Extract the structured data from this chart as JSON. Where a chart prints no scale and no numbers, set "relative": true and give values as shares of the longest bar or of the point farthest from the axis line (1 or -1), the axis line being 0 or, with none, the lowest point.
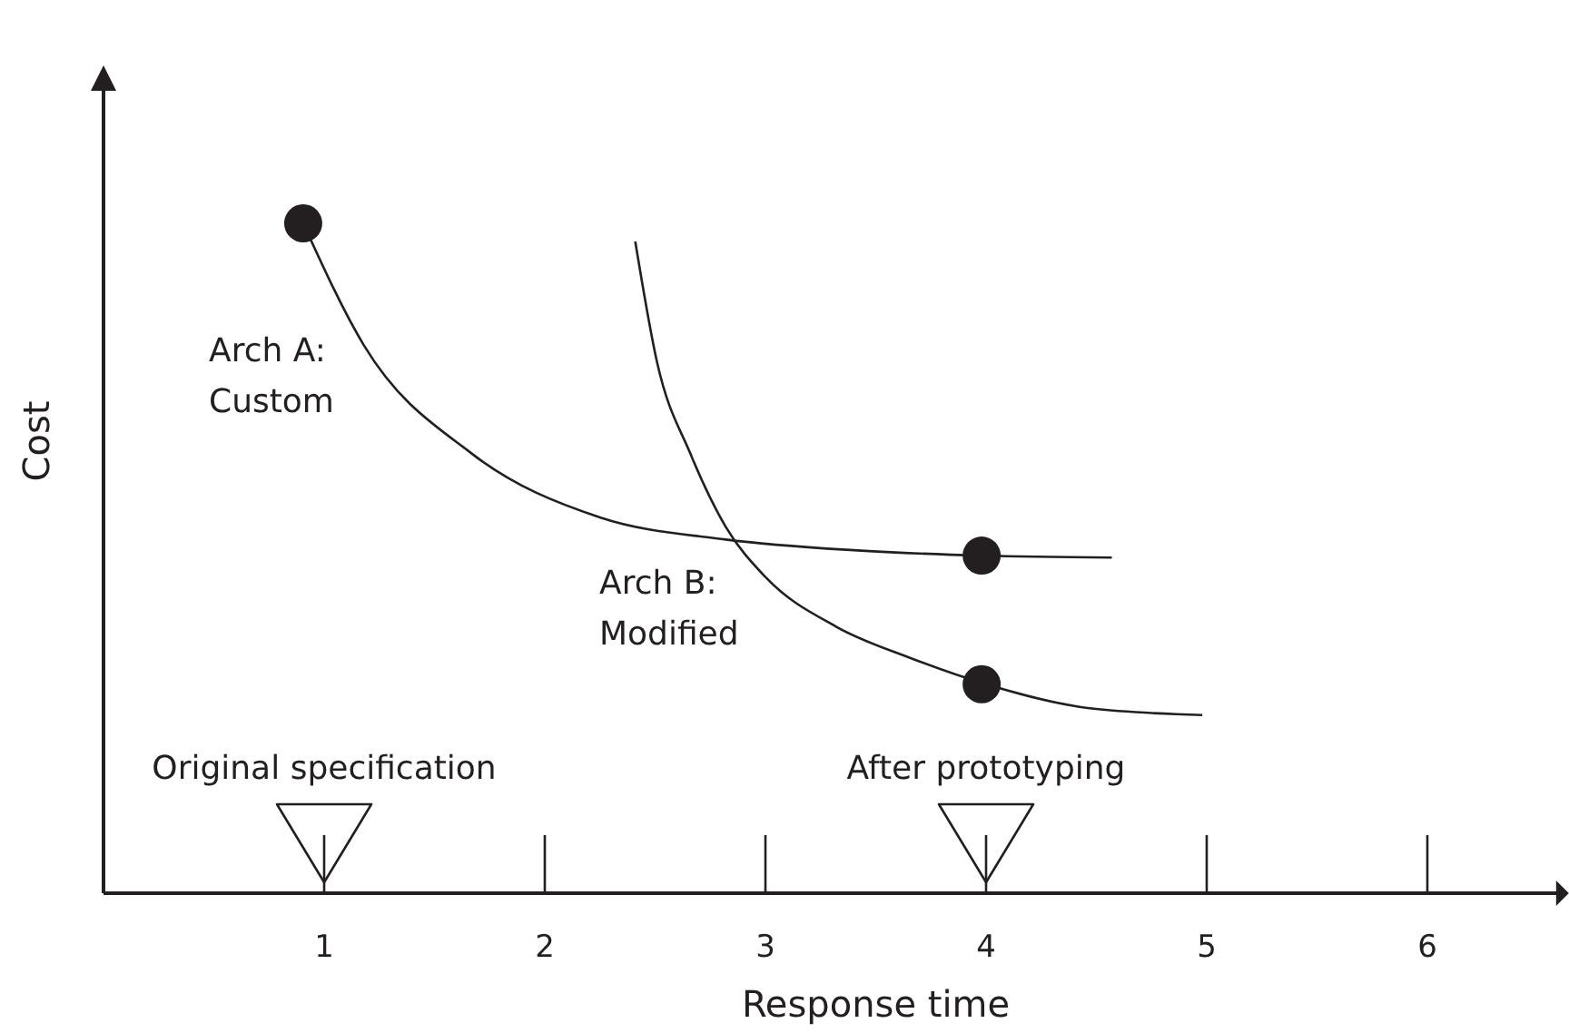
{
  "chart_data": {
    "type": "line",
    "relative": true,
    "xlabel": "Response time",
    "ylabel": "Cost",
    "xlim": [
      0,
      6.6
    ],
    "xticks": [
      1,
      2,
      3,
      4,
      5,
      6
    ],
    "grid": false,
    "marker": "none",
    "line_style": "solid",
    "series": [
      {
        "color": "#231f20",
        "x": [
          0.905,
          1.18,
          1.67,
          2.25,
          2.82,
          3.4,
          3.98,
          4.57
        ],
        "values": [
          1,
          0.818,
          0.656,
          0.561,
          0.528,
          0.512,
          0.504,
          0.501
        ]
      },
      {
        "color": "#231f20",
        "x": [
          2.41,
          2.51,
          2.66,
          2.82,
          3.0,
          3.32,
          3.65,
          4.0,
          4.47,
          4.98
        ],
        "values": [
          0.973,
          0.791,
          0.656,
          0.547,
          0.472,
          0.398,
          0.352,
          0.312,
          0.276,
          0.266
        ]
      },
      {
        "type": "scatter",
        "color": "#231f20",
        "marker": "circle",
        "x": [
          0.905,
          3.98,
          3.98
        ],
        "values": [
          1,
          0.504,
          0.312
        ]
      }
    ],
    "annotations": [
      "Arch A: Custom",
      "Arch B: Modified"
    ],
    "ref_lines": [
      {
        "axis": "x",
        "value": 1,
        "label": "Original specification"
      },
      {
        "axis": "x",
        "value": 4,
        "label": "After prototyping"
      }
    ]
  }
}
